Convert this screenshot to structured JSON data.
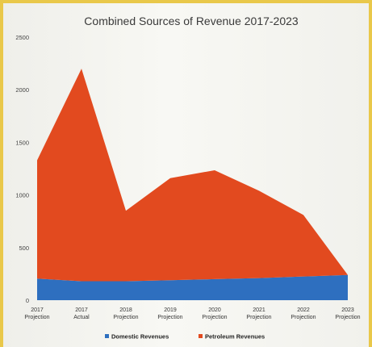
{
  "chart_data": {
    "type": "area",
    "title": "Combined Sources of Revenue 2017-2023",
    "categories": [
      [
        "2017",
        "Projection"
      ],
      [
        "2017",
        "Actual"
      ],
      [
        "2018",
        "Projection"
      ],
      [
        "2019",
        "Projection"
      ],
      [
        "2020",
        "Projection"
      ],
      [
        "2021",
        "Projection"
      ],
      [
        "2022",
        "Projection"
      ],
      [
        "2023",
        "Projection"
      ]
    ],
    "ylim": [
      0,
      2500
    ],
    "yticks": [
      0,
      500,
      1000,
      1500,
      2000,
      2500
    ],
    "stacked": true,
    "series": [
      {
        "name": "Domestic Revenues",
        "color": "#2e6fbf",
        "values": [
          205,
          180,
          180,
          190,
          200,
          210,
          225,
          240
        ]
      },
      {
        "name": "Petroleum Revenues",
        "color": "#e24a1f",
        "values": [
          1125,
          2020,
          670,
          970,
          1035,
          830,
          585,
          0
        ]
      }
    ],
    "legend_position": "bottom",
    "grid": false
  }
}
